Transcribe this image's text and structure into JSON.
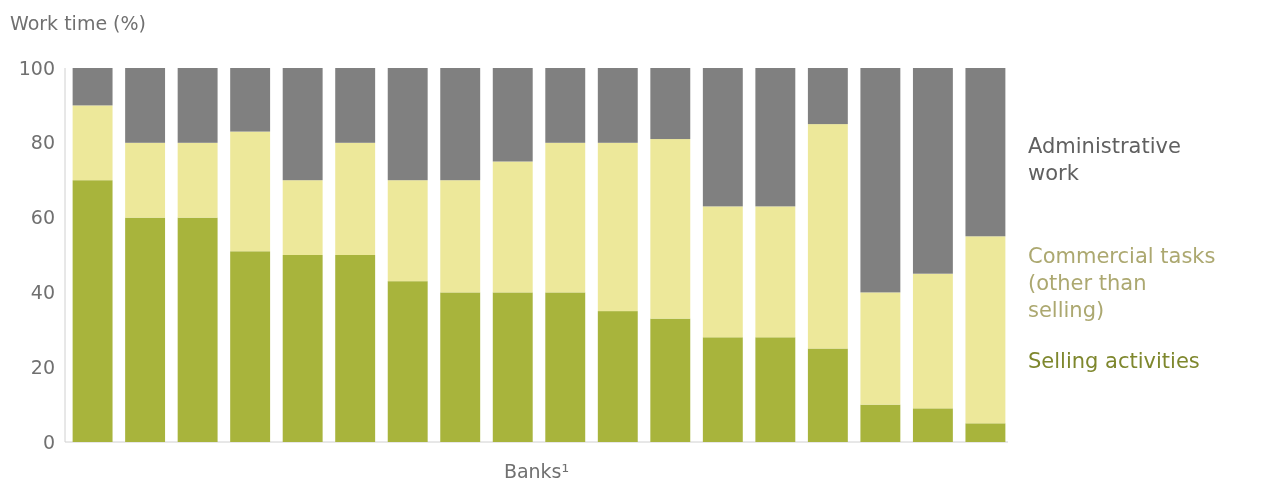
{
  "chart_data": {
    "type": "bar",
    "stacked": true,
    "ylabel": "Work time (%)",
    "xlabel": "Banks¹",
    "categories": [
      null,
      null,
      null,
      null,
      null,
      null,
      null,
      null,
      null,
      null,
      null,
      null,
      null,
      null,
      null,
      null,
      null,
      null
    ],
    "ylim": [
      0,
      100
    ],
    "yticks": [
      0,
      20,
      40,
      60,
      80,
      100
    ],
    "legend": "right",
    "series": [
      {
        "name": "Selling activities",
        "color": "#a8b43c",
        "values": [
          70,
          60,
          60,
          51,
          50,
          50,
          43,
          40,
          40,
          40,
          35,
          33,
          28,
          28,
          25,
          10,
          9,
          5
        ]
      },
      {
        "name": "Commercial tasks (other than selling)",
        "color": "#ede89a",
        "values": [
          20,
          20,
          20,
          32,
          20,
          30,
          27,
          30,
          35,
          40,
          45,
          48,
          35,
          35,
          60,
          30,
          36,
          50
        ]
      },
      {
        "name": "Administrative work",
        "color": "#808080",
        "values": [
          10,
          20,
          20,
          17,
          30,
          20,
          30,
          30,
          25,
          20,
          20,
          19,
          37,
          37,
          15,
          60,
          55,
          45
        ]
      }
    ]
  }
}
